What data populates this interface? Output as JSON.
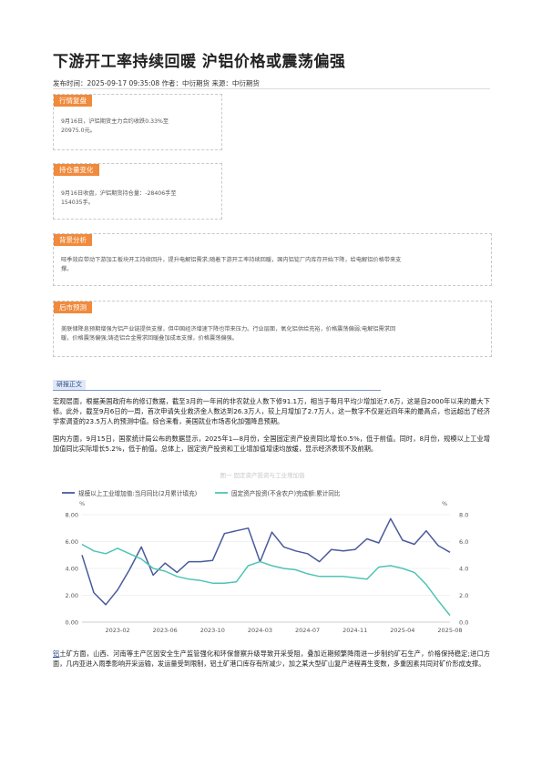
{
  "title": "下游开工率持续回暖 沪铝价格或震荡偏强",
  "meta": "发布时间：2025-09-17 09:35:08  作者：中衍期货  来源：中衍期货",
  "sections": [
    {
      "tag": "行情复盘",
      "text": "9月16日，沪铝期货主力合约收跌0.33%至\n20975.0元。"
    },
    {
      "tag": "持仓量变化",
      "text": "9月16日收盘，沪铝期货持仓量：-28406手至\n154035手。"
    },
    {
      "tag": "背景分析",
      "text": "旺季效应带动下游加工板块开工持续回升，提升电解铝需求;随着下游开工率持续回暖，国内铝锭厂内库存开始下降，给电解铝价格带来支\n撑。"
    },
    {
      "tag": "后市预测",
      "text": "美联储降息预期增强为铝产业链提供支撑，但中国经济增速下降也带来压力。行业层面，氧化铝供给充裕，价格震荡偏弱;电解铝需求回\n暖，价格震荡偏强;铸造铝合金需求回暖叠加成本支撑，价格震荡偏强。"
    }
  ],
  "body_tag": "研报正文",
  "paragraphs": [
    "宏观层面，根据美国政府布的修订数据，截至3月的一年间的非农就业人数下修91.1万，相当于每月平均少增加近7.6万，这是自2000年以来的最大下修。此外，截至9月6日的一周，首次申请失业救济金人数达到26.3万人，较上月增加了2.7万人，这一数字不仅是近四年来的最高点，也远超出了经济学家调查的23.5万人的预测中值。综合来看，美国就业市场恶化加强降息预期。",
    "国内方面，9月15日，国家统计局公布的数据显示，2025年1—8月份，全国固定资产投资同比增长0.5%，低于前值。同时，8月份，规模以上工业增加值同比实际增长5.2%，低于前值。总体上，固定资产投资和工业增加值增速均放缓，显示经济表现不及前期。"
  ],
  "closing_link": "铝",
  "closing_paragraph": "土矿方面，山西、河南等主产区因安全生产监管强化和环保督察升级导致开采受阻，叠加近期频繁降雨进一步制约矿石生产，价格保持稳定;进口方面，几内亚进入雨季影响开采运输，发运量受到限制，铝土矿港口库存有所减少，加之某大型矿山复产进程再生变数，多重因素共同对矿价形成支撑。",
  "chart_data": {
    "type": "line",
    "title": "图一  固定资产投资与工业增加值",
    "x": [
      "2022-10",
      "2022-11",
      "2022-12",
      "2023-02",
      "2023-03",
      "2023-04",
      "2023-05",
      "2023-06",
      "2023-07",
      "2023-08",
      "2023-09",
      "2023-10",
      "2023-11",
      "2023-12",
      "2024-02",
      "2024-03",
      "2024-04",
      "2024-05",
      "2024-06",
      "2024-07",
      "2024-08",
      "2024-09",
      "2024-10",
      "2024-11",
      "2024-12",
      "2025-02",
      "2025-03",
      "2025-04",
      "2025-05",
      "2025-06",
      "2025-07",
      "2025-08"
    ],
    "x_ticks": [
      "2023-02",
      "2023-06",
      "2023-10",
      "2024-03",
      "2024-07",
      "2024-11",
      "2025-04",
      "2025-08"
    ],
    "ylim": [
      0,
      8
    ],
    "y_ticks": [
      "0.00",
      "2.00",
      "4.00",
      "6.00",
      "8.00"
    ],
    "y_ticks_right": [
      "0.0",
      "2.0",
      "4.0",
      "6.0",
      "8.0"
    ],
    "y_unit": "%",
    "series": [
      {
        "name": "规模以上工业增加值:当月同比(2月累计填充)",
        "color": "#4a5a9c",
        "values": [
          5.0,
          2.2,
          1.3,
          2.4,
          3.9,
          5.6,
          3.5,
          4.4,
          3.7,
          4.5,
          4.5,
          4.6,
          6.6,
          6.8,
          7.0,
          4.5,
          6.7,
          5.6,
          5.3,
          5.1,
          4.5,
          5.4,
          5.3,
          5.4,
          6.2,
          5.9,
          7.7,
          6.1,
          5.8,
          6.8,
          5.7,
          5.2
        ]
      },
      {
        "name": "固定资产投资(不含农户)完成额:累计同比",
        "color": "#4fc4b5",
        "values": [
          5.8,
          5.3,
          5.1,
          5.5,
          5.1,
          4.7,
          4.0,
          3.8,
          3.4,
          3.2,
          3.1,
          2.9,
          2.9,
          3.0,
          4.2,
          4.5,
          4.2,
          4.0,
          3.9,
          3.6,
          3.4,
          3.4,
          3.4,
          3.3,
          3.2,
          4.1,
          4.2,
          4.0,
          3.7,
          2.8,
          1.6,
          0.5
        ]
      }
    ]
  }
}
